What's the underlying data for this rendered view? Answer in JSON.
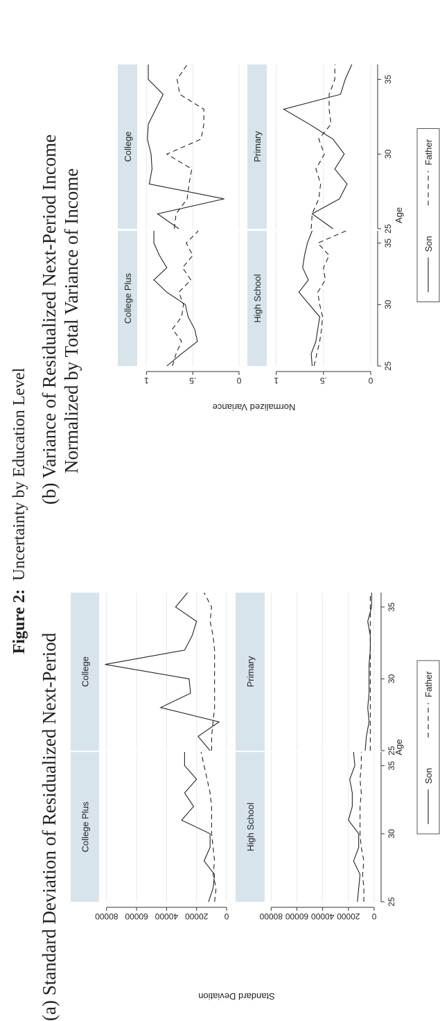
{
  "figure": {
    "label": "Figure 2:",
    "caption": "Uncertainty by Education Level",
    "panel_a_title": "(a) Standard Deviation of Residualized Next-Period",
    "panel_b_title_line1": "(b) Variance of Residualized Next-Period Income",
    "panel_b_title_line2": "Normalized by Total Variance of Income"
  },
  "colors": {
    "facet_header": "#d8e4ec",
    "grid": "#e6eaee",
    "line": "#222222"
  },
  "chart_data": [
    {
      "type": "line",
      "ylabel": "Standard Deviation",
      "xlabel": "Age",
      "ylim": [
        0,
        85000
      ],
      "xlim": [
        25,
        36
      ],
      "yticks": [
        0,
        20000,
        40000,
        60000,
        80000
      ],
      "ytick_labels": [
        "0",
        "20000",
        "40000",
        "60000",
        "80000"
      ],
      "xticks": [
        25,
        30,
        35
      ],
      "xtick_labels": [
        "25",
        "30",
        "35"
      ],
      "grid": true,
      "legend": {
        "position": "bottom",
        "entries": [
          "Son",
          "Father"
        ]
      },
      "facets": [
        {
          "title": "College Plus",
          "series": [
            {
              "name": "Son",
              "x": [
                25,
                26,
                27,
                28,
                29,
                30,
                31,
                32,
                33,
                34,
                35,
                36
              ],
              "y": [
                12000,
                9000,
                8000,
                15000,
                11000,
                11000,
                30000,
                22000,
                28000,
                20000,
                28000,
                28000
              ]
            },
            {
              "name": "Father",
              "x": [
                25,
                26,
                27,
                28,
                29,
                30,
                31,
                32,
                33,
                34,
                35,
                36
              ],
              "y": [
                8000,
                7000,
                9000,
                8000,
                9000,
                10000,
                10000,
                10000,
                11000,
                13000,
                15000,
                17000
              ]
            }
          ]
        },
        {
          "title": "College",
          "series": [
            {
              "name": "Son",
              "x": [
                25,
                26,
                27,
                28,
                29,
                30,
                31,
                32,
                33,
                34,
                35,
                36
              ],
              "y": [
                11000,
                19000,
                5000,
                44000,
                24000,
                25000,
                81000,
                28000,
                23000,
                20000,
                34000,
                26000
              ]
            },
            {
              "name": "Father",
              "x": [
                25,
                26,
                27,
                28,
                29,
                30,
                31,
                32,
                33,
                34,
                35,
                36
              ],
              "y": [
                10000,
                10000,
                9000,
                8000,
                8000,
                8000,
                8000,
                8000,
                9000,
                11000,
                10000,
                15000
              ]
            }
          ]
        },
        {
          "title": "High School",
          "series": [
            {
              "name": "Son",
              "x": [
                25,
                26,
                27,
                28,
                29,
                30,
                31,
                32,
                33,
                34,
                35,
                36
              ],
              "y": [
                13000,
                12000,
                11000,
                16000,
                12000,
                12000,
                20000,
                17000,
                17000,
                19000,
                15000,
                16000
              ]
            },
            {
              "name": "Father",
              "x": [
                25,
                26,
                27,
                28,
                29,
                30,
                31,
                32,
                33,
                34,
                35,
                36
              ],
              "y": [
                8000,
                8000,
                9000,
                8000,
                10000,
                11000,
                11000,
                11000,
                10000,
                11000,
                10000,
                10000
              ]
            }
          ]
        },
        {
          "title": "Primary",
          "series": [
            {
              "name": "Son",
              "x": [
                25,
                26,
                27,
                28,
                29,
                30,
                31,
                32,
                33,
                34,
                35,
                36
              ],
              "y": [
                7000,
                6000,
                4000,
                5000,
                4000,
                4000,
                4000,
                3000,
                3000,
                5000,
                2000,
                2000
              ]
            },
            {
              "name": "Father",
              "x": [
                25,
                26,
                27,
                28,
                29,
                30,
                31,
                32,
                33,
                34,
                35,
                36
              ],
              "y": [
                3000,
                3000,
                3000,
                3000,
                3000,
                3000,
                3000,
                3000,
                3000,
                3000,
                3000,
                3000
              ]
            }
          ]
        }
      ]
    },
    {
      "type": "line",
      "ylabel": "Normalized Variance",
      "xlabel": "Age",
      "ylim": [
        0,
        1.1
      ],
      "xlim": [
        25,
        36
      ],
      "yticks": [
        0,
        0.5,
        1
      ],
      "ytick_labels": [
        "0",
        ".5",
        "1"
      ],
      "xticks": [
        25,
        30,
        35
      ],
      "xtick_labels": [
        "25",
        "30",
        "35"
      ],
      "grid": true,
      "legend": {
        "position": "bottom",
        "entries": [
          "Son",
          "Father"
        ]
      },
      "facets": [
        {
          "title": "College Plus",
          "series": [
            {
              "name": "Son",
              "x": [
                25,
                26,
                27,
                28,
                29,
                30,
                31,
                32,
                33,
                34,
                35,
                36
              ],
              "y": [
                0.78,
                0.62,
                0.45,
                0.48,
                0.55,
                0.58,
                0.78,
                0.92,
                0.78,
                0.86,
                0.92,
                0.92
              ]
            },
            {
              "name": "Father",
              "x": [
                25,
                26,
                27,
                28,
                29,
                30,
                31,
                32,
                33,
                34,
                35,
                36
              ],
              "y": [
                0.72,
                0.68,
                0.62,
                0.72,
                0.62,
                0.6,
                0.65,
                0.52,
                0.61,
                0.5,
                0.57,
                0.44
              ]
            }
          ]
        },
        {
          "title": "College",
          "series": [
            {
              "name": "Son",
              "x": [
                25,
                26,
                27,
                28,
                29,
                30,
                31,
                32,
                33,
                34,
                35,
                36
              ],
              "y": [
                0.65,
                0.88,
                0.16,
                0.97,
                0.94,
                0.95,
                0.99,
                0.98,
                0.9,
                0.82,
                0.98,
                0.98
              ]
            },
            {
              "name": "Father",
              "x": [
                25,
                26,
                27,
                28,
                29,
                30,
                31,
                32,
                33,
                34,
                35,
                36
              ],
              "y": [
                0.7,
                0.68,
                0.56,
                0.54,
                0.51,
                0.78,
                0.41,
                0.38,
                0.38,
                0.64,
                0.67,
                0.56
              ]
            }
          ]
        },
        {
          "title": "High School",
          "series": [
            {
              "name": "Son",
              "x": [
                25,
                26,
                27,
                28,
                29,
                30,
                31,
                32,
                33,
                34,
                35,
                36
              ],
              "y": [
                0.62,
                0.63,
                0.58,
                0.56,
                0.54,
                0.65,
                0.76,
                0.66,
                0.72,
                0.7,
                0.67,
                0.62
              ]
            },
            {
              "name": "Father",
              "x": [
                25,
                26,
                27,
                28,
                29,
                30,
                31,
                32,
                33,
                34,
                35,
                36
              ],
              "y": [
                0.6,
                0.57,
                0.54,
                0.52,
                0.51,
                0.54,
                0.56,
                0.48,
                0.5,
                0.44,
                0.56,
                0.26
              ]
            }
          ]
        },
        {
          "title": "Primary",
          "series": [
            {
              "name": "Son",
              "x": [
                25,
                26,
                27,
                28,
                29,
                30,
                31,
                32,
                33,
                34,
                35,
                36
              ],
              "y": [
                0.4,
                0.62,
                0.33,
                0.25,
                0.38,
                0.28,
                0.4,
                0.65,
                0.92,
                0.32,
                0.27,
                0.2
              ]
            },
            {
              "name": "Father",
              "x": [
                25,
                26,
                27,
                28,
                29,
                30,
                31,
                32,
                33,
                34,
                35,
                36
              ],
              "y": [
                0.63,
                0.62,
                0.55,
                0.53,
                0.58,
                0.49,
                0.55,
                0.42,
                0.44,
                0.44,
                0.38,
                0.38
              ]
            }
          ]
        }
      ]
    }
  ]
}
